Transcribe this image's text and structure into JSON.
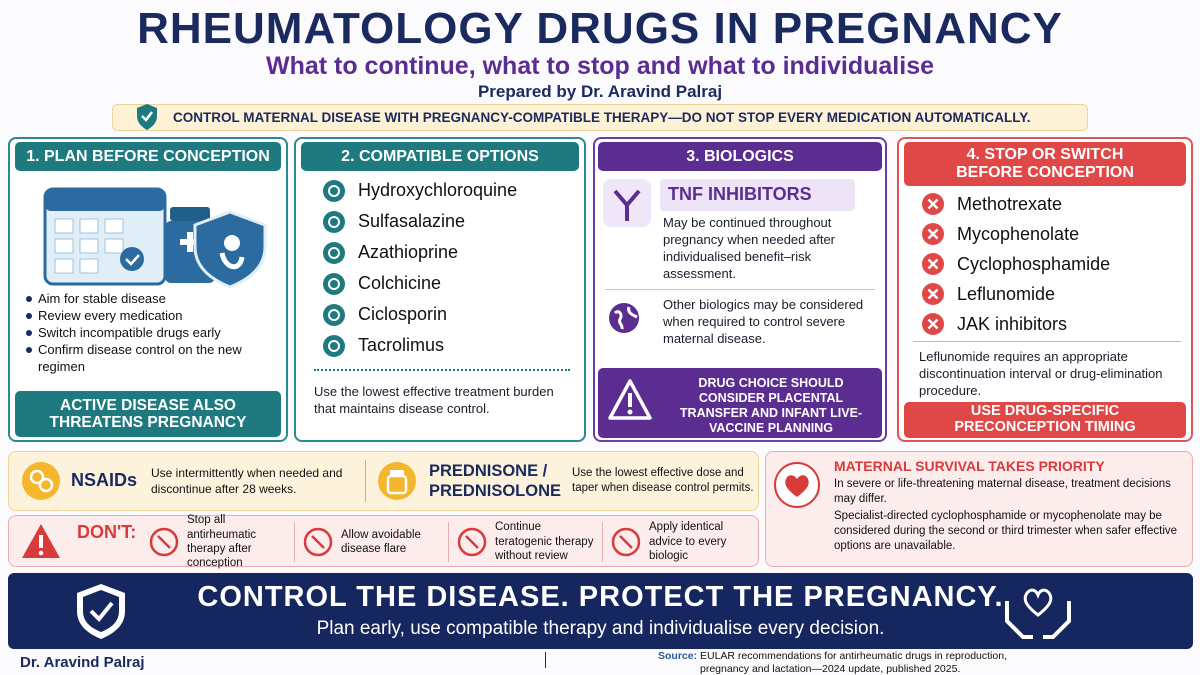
{
  "header": {
    "title": "RHEUMATOLOGY DRUGS IN PREGNANCY",
    "subtitle": "What to continue, what to stop and what to individualise",
    "author": "Prepared by Dr. Aravind Palraj",
    "banner": "CONTROL MATERNAL DISEASE WITH PREGNANCY-COMPATIBLE THERAPY—DO NOT STOP EVERY MEDICATION AUTOMATICALLY."
  },
  "panels": [
    {
      "title": "1. PLAN BEFORE CONCEPTION",
      "items": [
        "Aim for stable disease",
        "Review every medication",
        "Switch incompatible drugs early",
        "Confirm disease control on the new regimen"
      ],
      "footer": "ACTIVE DISEASE ALSO THREATENS PREGNANCY"
    },
    {
      "title": "2. COMPATIBLE OPTIONS",
      "items": [
        "Hydroxychloroquine",
        "Sulfasalazine",
        "Azathioprine",
        "Colchicine",
        "Ciclosporin",
        "Tacrolimus"
      ],
      "note": "Use the lowest effective treatment burden that maintains disease control."
    },
    {
      "title": "3. BIOLOGICS",
      "subtitle": "TNF INHIBITORS",
      "text": "May be continued throughout pregnancy when needed after individualised benefit–risk assessment.",
      "text2": "Other biologics may be considered when required to control severe maternal disease.",
      "footer": "DRUG CHOICE SHOULD CONSIDER PLACENTAL TRANSFER AND INFANT LIVE-VACCINE PLANNING"
    },
    {
      "title": "4. STOP OR SWITCH BEFORE CONCEPTION",
      "items": [
        "Methotrexate",
        "Mycophenolate",
        "Cyclophosphamide",
        "Leflunomide",
        "JAK inhibitors"
      ],
      "note": "Leflunomide requires an appropriate discontinuation interval or drug-elimination procedure.",
      "footer": "USE DRUG-SPECIFIC PRECONCEPTION TIMING"
    }
  ],
  "nsaids": {
    "title": "NSAIDs",
    "text": "Use intermittently when needed and discontinue after 28 weeks."
  },
  "prednisone": {
    "title": "PREDNISONE / PREDNISOLONE",
    "text": "Use the lowest effective dose and taper when disease control permits."
  },
  "maternal": {
    "title": "MATERNAL SURVIVAL TAKES PRIORITY",
    "text": "In severe or life-threatening maternal disease, treatment decisions may differ.",
    "text2": "Specialist-directed cyclophosphamide or mycophenolate may be considered during the second or third trimester when safer effective options are unavailable."
  },
  "donts": {
    "title": "DON'T:",
    "items": [
      "Stop all antirheumatic therapy after conception",
      "Allow avoidable disease flare",
      "Continue teratogenic therapy without review",
      "Apply identical advice to every biologic"
    ]
  },
  "closing": {
    "title": "CONTROL THE DISEASE. PROTECT THE PREGNANCY.",
    "subtitle": "Plan early, use compatible therapy and individualise every decision."
  },
  "footer": {
    "author": "Dr. Aravind Palraj",
    "source_label": "Source:",
    "source": "EULAR recommendations for antirheumatic drugs in reproduction, pregnancy and lactation—2024 update, published 2025."
  }
}
